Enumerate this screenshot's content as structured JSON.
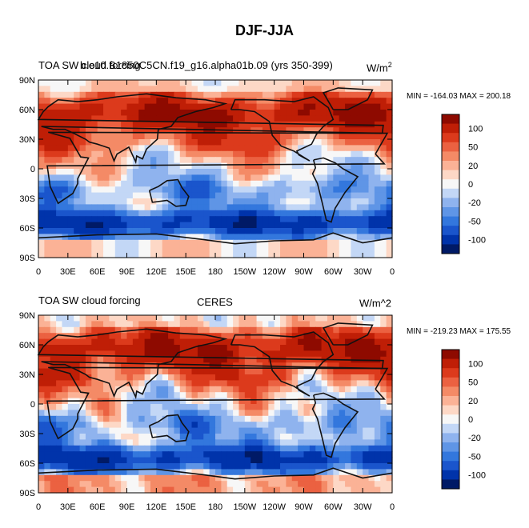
{
  "figure": {
    "title": "DJF-JJA"
  },
  "palette": [
    "#001a66",
    "#0033aa",
    "#1a55cc",
    "#3377dd",
    "#5f95e6",
    "#8fb3ee",
    "#c3d7f6",
    "#f7f7f7",
    "#fdd8c6",
    "#fbb296",
    "#f48a66",
    "#eb6141",
    "#dc3a1c",
    "#bf1e06",
    "#8e0a00"
  ],
  "colorbar_ticks": [
    "100",
    "50",
    "20",
    "0",
    "-20",
    "-50",
    "-100"
  ],
  "x_ticks": [
    "0",
    "30E",
    "60E",
    "90E",
    "120E",
    "150E",
    "180",
    "150W",
    "120W",
    "90W",
    "60W",
    "30W",
    "0"
  ],
  "y_ticks": [
    "90N",
    "60N",
    "30N",
    "0",
    "30S",
    "60S",
    "90S"
  ],
  "panels": [
    {
      "left_title": "TOA SW cloud forcing",
      "center_title": "b.e10.B1850C5CN.f19_g16.alpha01b.09 (yrs 350-399)",
      "right_units": "W/m",
      "right_units_sup": "2",
      "stats": "MIN = -164.03 MAX = 200.18"
    },
    {
      "left_title": "TOA SW cloud forcing",
      "center_title": "CERES",
      "right_units": "W/m^2",
      "right_units_sup": "",
      "stats": "MIN = -219.23 MAX = 175.55"
    }
  ],
  "chart_data": [
    {
      "type": "heatmap",
      "title": "TOA SW cloud forcing — b.e10.B1850C5CN.f19_g16.alpha01b.09 (yrs 350-399)",
      "units": "W/m^2",
      "x_range": [
        0,
        360
      ],
      "y_range": [
        -90,
        90
      ],
      "colorbar_levels": [
        -100,
        -50,
        -20,
        0,
        20,
        50,
        100
      ],
      "min": -164.03,
      "max": 200.18
    },
    {
      "type": "heatmap",
      "title": "TOA SW cloud forcing — CERES",
      "units": "W/m^2",
      "x_range": [
        0,
        360
      ],
      "y_range": [
        -90,
        90
      ],
      "colorbar_levels": [
        -100,
        -50,
        -20,
        0,
        20,
        50,
        100
      ],
      "min": -219.23,
      "max": 175.55
    }
  ]
}
